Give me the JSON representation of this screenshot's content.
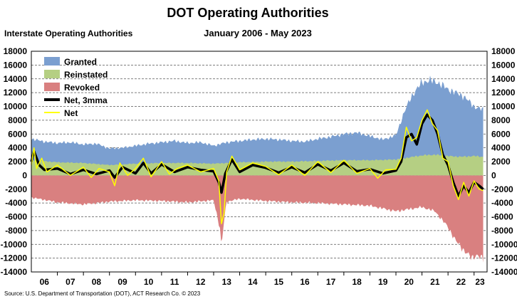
{
  "chart_data": {
    "type": "area",
    "title": "DOT Operating Authorities",
    "subtitle": "January 2006 - May 2023",
    "ylabel": "Interstate Operating Authorities",
    "source": "Source: U.S. Department of Transportation (DOT), ACT Research Co. © 2023",
    "ylim": [
      -14000,
      18000
    ],
    "yticks": [
      18000,
      16000,
      14000,
      12000,
      10000,
      8000,
      6000,
      4000,
      2000,
      0,
      -2000,
      -4000,
      -6000,
      -8000,
      -10000,
      -12000,
      -14000
    ],
    "ytick_labels": [
      "18000",
      "16000",
      "14000",
      "12000",
      "10000",
      "8000",
      "6000",
      "4000",
      "2000",
      "0",
      "-2000",
      "-4000",
      "-6000",
      "-8000",
      "-10000",
      "-12000",
      "-14000"
    ],
    "xlim": [
      2006.0,
      2023.5
    ],
    "xtick_labels": [
      "06",
      "07",
      "08",
      "09",
      "10",
      "11",
      "12",
      "13",
      "14",
      "15",
      "16",
      "17",
      "18",
      "19",
      "20",
      "21",
      "22",
      "23"
    ],
    "grid": "horizontal dashed",
    "legend_position": "top-left",
    "colors": {
      "granted": "#7b9fd0",
      "reinstated": "#b5cf83",
      "revoked": "#d98080",
      "net3mma": "#000000",
      "net": "#ffff00"
    },
    "series": [
      {
        "name": "Granted",
        "type": "area",
        "x": [
          2006.0,
          2006.5,
          2007.0,
          2007.5,
          2008.0,
          2008.5,
          2009.0,
          2009.5,
          2010.0,
          2010.5,
          2011.0,
          2011.5,
          2012.0,
          2012.5,
          2013.0,
          2013.5,
          2014.0,
          2014.5,
          2015.0,
          2015.5,
          2016.0,
          2016.5,
          2017.0,
          2017.5,
          2018.0,
          2018.5,
          2019.0,
          2019.5,
          2020.0,
          2020.3,
          2020.6,
          2021.0,
          2021.3,
          2021.6,
          2022.0,
          2022.3,
          2022.6,
          2023.0,
          2023.35
        ],
        "values": [
          5300,
          4900,
          4700,
          4800,
          4500,
          4600,
          3900,
          4000,
          4300,
          4600,
          4800,
          5000,
          4700,
          4800,
          4300,
          4800,
          5000,
          5200,
          5300,
          5200,
          5000,
          4900,
          5300,
          5600,
          6000,
          6200,
          5700,
          5200,
          5800,
          9000,
          11500,
          13500,
          13800,
          13500,
          12500,
          12000,
          11500,
          10000,
          9500
        ]
      },
      {
        "name": "Reinstated",
        "type": "area",
        "x": [
          2006.0,
          2007.0,
          2008.0,
          2009.0,
          2010.0,
          2011.0,
          2012.0,
          2013.0,
          2014.0,
          2015.0,
          2016.0,
          2017.0,
          2018.0,
          2019.0,
          2020.0,
          2020.5,
          2021.0,
          2021.5,
          2022.0,
          2022.5,
          2023.0,
          2023.35
        ],
        "values": [
          2200,
          1900,
          1800,
          1500,
          1700,
          1800,
          1800,
          1700,
          1900,
          2000,
          2000,
          2100,
          2200,
          2200,
          2300,
          2600,
          2900,
          3000,
          2800,
          2700,
          2800,
          2700
        ]
      },
      {
        "name": "Revoked",
        "type": "area",
        "x": [
          2006.0,
          2007.0,
          2008.0,
          2009.0,
          2010.0,
          2011.0,
          2012.0,
          2013.0,
          2013.25,
          2013.3,
          2013.4,
          2013.5,
          2014.0,
          2015.0,
          2016.0,
          2017.0,
          2018.0,
          2019.0,
          2020.0,
          2020.5,
          2021.0,
          2021.5,
          2022.0,
          2022.3,
          2022.6,
          2022.9,
          2023.1,
          2023.35
        ],
        "values": [
          -3200,
          -3900,
          -4200,
          -3800,
          -3600,
          -3700,
          -3900,
          -3600,
          -7800,
          -10500,
          -6500,
          -3800,
          -3400,
          -3700,
          -3900,
          -4000,
          -4200,
          -4400,
          -5200,
          -4900,
          -4600,
          -5200,
          -7500,
          -9500,
          -10800,
          -12000,
          -11500,
          -12200
        ]
      },
      {
        "name": "Net, 3mma",
        "type": "line",
        "x": [
          2006.0,
          2006.1,
          2006.3,
          2006.5,
          2007.0,
          2007.5,
          2008.0,
          2008.5,
          2009.0,
          2009.2,
          2009.5,
          2010.0,
          2010.3,
          2010.6,
          2011.0,
          2011.5,
          2012.0,
          2012.5,
          2013.0,
          2013.2,
          2013.3,
          2013.45,
          2013.7,
          2014.0,
          2014.5,
          2015.0,
          2015.5,
          2016.0,
          2016.5,
          2017.0,
          2017.5,
          2018.0,
          2018.5,
          2019.0,
          2019.5,
          2020.0,
          2020.2,
          2020.4,
          2020.6,
          2020.8,
          2021.0,
          2021.2,
          2021.4,
          2021.6,
          2021.8,
          2022.0,
          2022.2,
          2022.4,
          2022.6,
          2022.8,
          2023.0,
          2023.2,
          2023.35
        ],
        "values": [
          2000,
          3500,
          1500,
          800,
          1000,
          200,
          800,
          200,
          700,
          -300,
          1200,
          300,
          1800,
          300,
          1600,
          500,
          1200,
          800,
          600,
          -1000,
          -2500,
          300,
          2300,
          500,
          1500,
          1100,
          400,
          1200,
          400,
          1600,
          700,
          1800,
          600,
          900,
          300,
          700,
          2000,
          5500,
          6000,
          4500,
          7500,
          8800,
          8000,
          6000,
          3000,
          1500,
          -1000,
          -3000,
          -1500,
          -2500,
          -1000,
          -1500,
          -2000
        ]
      },
      {
        "name": "Net",
        "type": "line",
        "x": [
          2006.0,
          2006.1,
          2006.2,
          2006.4,
          2006.6,
          2007.0,
          2007.5,
          2008.0,
          2008.3,
          2008.6,
          2009.0,
          2009.2,
          2009.4,
          2009.7,
          2010.0,
          2010.3,
          2010.6,
          2011.0,
          2011.3,
          2011.6,
          2012.0,
          2012.5,
          2013.0,
          2013.2,
          2013.3,
          2013.4,
          2013.5,
          2013.7,
          2014.0,
          2014.5,
          2015.0,
          2015.5,
          2016.0,
          2016.5,
          2017.0,
          2017.5,
          2018.0,
          2018.5,
          2019.0,
          2019.3,
          2019.6,
          2020.0,
          2020.2,
          2020.4,
          2020.6,
          2020.8,
          2021.0,
          2021.2,
          2021.4,
          2021.6,
          2021.8,
          2022.0,
          2022.2,
          2022.4,
          2022.6,
          2022.8,
          2023.0,
          2023.2,
          2023.35
        ],
        "values": [
          1500,
          4000,
          1000,
          2500,
          500,
          1500,
          0,
          1200,
          -300,
          1000,
          500,
          -1500,
          1800,
          0,
          1000,
          2500,
          -200,
          2000,
          200,
          1000,
          1500,
          500,
          1000,
          -800,
          -7000,
          -5500,
          500,
          2800,
          800,
          1800,
          1300,
          100,
          1500,
          0,
          2000,
          400,
          2200,
          300,
          1000,
          -400,
          800,
          900,
          2500,
          7000,
          5000,
          5500,
          8000,
          9500,
          7500,
          6500,
          2500,
          2000,
          -1500,
          -3500,
          -1000,
          -3000,
          -800,
          -2000,
          -2200
        ]
      }
    ]
  }
}
